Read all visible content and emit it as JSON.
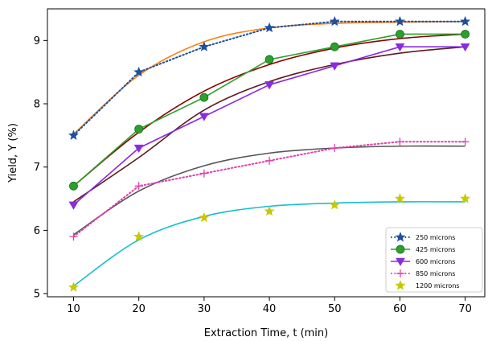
{
  "chart_data": {
    "type": "line",
    "xlabel": "Extraction Time, t (min)",
    "ylabel": "Yield, Y (%)",
    "xlim": [
      6,
      73
    ],
    "ylim": [
      4.95,
      9.5
    ],
    "xticks": [
      10,
      20,
      30,
      40,
      50,
      60,
      70
    ],
    "yticks": [
      5,
      6,
      7,
      8,
      9
    ],
    "x": [
      10,
      20,
      30,
      40,
      50,
      60,
      70
    ],
    "legend_position": "lower-right",
    "grid": false,
    "series": [
      {
        "name": "250 microns",
        "values": [
          7.5,
          8.5,
          8.9,
          9.2,
          9.3,
          9.3,
          9.3
        ],
        "color": "#1f4e9c",
        "marker": "star",
        "linestyle": "dotted"
      },
      {
        "name": "425 microns",
        "values": [
          6.7,
          7.6,
          8.1,
          8.7,
          8.9,
          9.1,
          9.1
        ],
        "color": "#2ca02c",
        "marker": "circle",
        "linestyle": "solid"
      },
      {
        "name": "600 microns",
        "values": [
          6.4,
          7.3,
          7.8,
          8.3,
          8.6,
          8.9,
          8.9
        ],
        "color": "#8a2be2",
        "marker": "triangle-down",
        "linestyle": "solid"
      },
      {
        "name": "850 microns",
        "values": [
          5.9,
          6.7,
          6.9,
          7.1,
          7.3,
          7.4,
          7.4
        ],
        "color": "#e040b0",
        "marker": "plus",
        "linestyle": "dotted"
      },
      {
        "name": "1200 microns",
        "values": [
          5.1,
          5.9,
          6.2,
          6.3,
          6.4,
          6.5,
          6.5
        ],
        "color": "#c8c800",
        "marker": "star",
        "linestyle": "none"
      }
    ],
    "fits": [
      {
        "color": "#ff7f0e",
        "values": [
          7.52,
          8.45,
          8.98,
          9.2,
          9.27,
          9.29,
          9.3
        ]
      },
      {
        "color": "#8b0000",
        "values": [
          6.7,
          7.55,
          8.2,
          8.62,
          8.88,
          9.03,
          9.1
        ]
      },
      {
        "color": "#5c1a1a",
        "values": [
          6.45,
          7.15,
          7.9,
          8.35,
          8.62,
          8.8,
          8.9
        ]
      },
      {
        "color": "#555555",
        "values": [
          5.93,
          6.62,
          7.02,
          7.22,
          7.3,
          7.33,
          7.33
        ]
      },
      {
        "color": "#17becf",
        "values": [
          5.12,
          5.85,
          6.22,
          6.38,
          6.43,
          6.45,
          6.45
        ]
      }
    ]
  }
}
